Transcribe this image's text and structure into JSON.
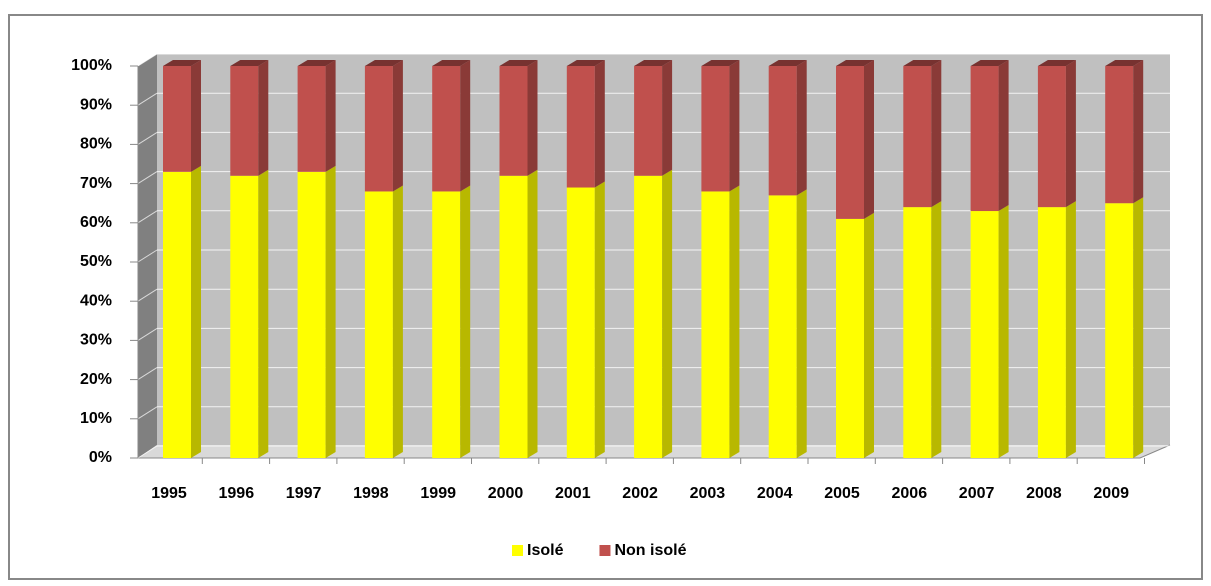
{
  "chart_data": {
    "type": "bar3d_stacked",
    "categories": [
      "1995",
      "1996",
      "1997",
      "1998",
      "1999",
      "2000",
      "2001",
      "2002",
      "2003",
      "2004",
      "2005",
      "2006",
      "2007",
      "2008",
      "2009"
    ],
    "series": [
      {
        "name": "Isolé",
        "color": "#ffff00",
        "values": [
          73,
          72,
          73,
          68,
          68,
          72,
          69,
          72,
          68,
          67,
          61,
          64,
          63,
          64,
          65
        ]
      },
      {
        "name": "Non isolé",
        "color": "#c0504d",
        "values": [
          27,
          28,
          27,
          32,
          32,
          28,
          31,
          28,
          32,
          33,
          39,
          36,
          37,
          36,
          35
        ]
      }
    ],
    "ylim": [
      0,
      100
    ],
    "yticks": [
      {
        "value": 0,
        "label": "0%"
      },
      {
        "value": 10,
        "label": "10%"
      },
      {
        "value": 20,
        "label": "20%"
      },
      {
        "value": 30,
        "label": "30%"
      },
      {
        "value": 40,
        "label": "40%"
      },
      {
        "value": 50,
        "label": "50%"
      },
      {
        "value": 60,
        "label": "60%"
      },
      {
        "value": 70,
        "label": "70%"
      },
      {
        "value": 80,
        "label": "80%"
      },
      {
        "value": 90,
        "label": "90%"
      },
      {
        "value": 100,
        "label": "100%"
      }
    ],
    "grid": true,
    "legend": "bottom"
  }
}
